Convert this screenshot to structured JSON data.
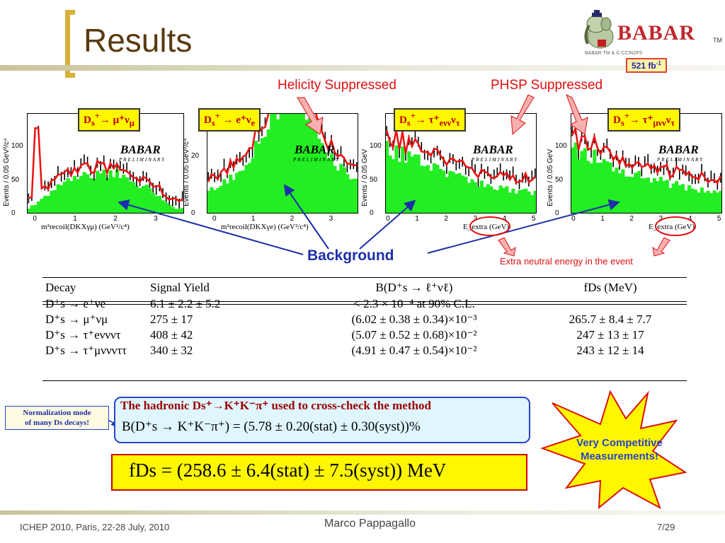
{
  "slide": {
    "title": "Results",
    "logo": "BABAR",
    "logo_tm": "TM",
    "logo_sub": "BABAR TM & © CCIN2P3",
    "luminosity_value": "521 fb",
    "luminosity_exp": "-1"
  },
  "annotations": {
    "helicity": "Helicity Suppressed",
    "phsp": "PHSP Suppressed",
    "background": "Background",
    "extra_energy": "Extra neutral energy in the event"
  },
  "plots": [
    {
      "mode_prefix": "D",
      "mode_sub": "s",
      "mode_sup": "+",
      "mode_rest": "→ μ⁺ν",
      "mode_rest_sub": "μ",
      "ylabel": "Events / 0.05 GeV²/c⁴",
      "yticks": [
        "100",
        "50",
        "0"
      ],
      "xticks": [
        "0",
        "1",
        "2",
        "3"
      ],
      "xlabel": "m²recoil(DKXγμ)   (GeV²/c⁴)",
      "watermark": "BABAR",
      "prelim": "PRELIMINARY"
    },
    {
      "mode_prefix": "D",
      "mode_sub": "s",
      "mode_sup": "+",
      "mode_rest": " → e⁺ν",
      "mode_rest_sub": "e",
      "ylabel": "Events / 0.05 GeV²/c⁴",
      "yticks": [
        "20",
        "0"
      ],
      "xticks": [
        "0",
        "1",
        "2",
        "3"
      ],
      "xlabel": "m²recoil(DKXγe)   (GeV²/c⁴)",
      "watermark": "BABAR",
      "prelim": "PRELIMINARY"
    },
    {
      "mode_prefix": "D",
      "mode_sub": "s",
      "mode_sup": "+",
      "mode_rest": "→ τ⁺",
      "mode_rest_sub": "eνν",
      "mode_tail": "ν",
      "mode_tail_sub": "τ",
      "ylabel": "Events / 0.05 GeV",
      "yticks": [
        "100",
        "50",
        "0"
      ],
      "xticks": [
        "0",
        "1",
        "2",
        "3",
        "4",
        "5"
      ],
      "xlabel": "E_extra   (GeV)",
      "watermark": "BABAR",
      "prelim": "PRELIMINARY"
    },
    {
      "mode_prefix": "D",
      "mode_sub": "s",
      "mode_sup": "+",
      "mode_rest": "→ τ⁺",
      "mode_rest_sub": "μνν",
      "mode_tail": "ν",
      "mode_tail_sub": "τ",
      "ylabel": "Events / 0.05 GeV",
      "yticks": [
        "100",
        "50",
        "0"
      ],
      "xticks": [
        "0",
        "1",
        "2",
        "3",
        "4",
        "5"
      ],
      "xlabel": "E_extra   (GeV)",
      "watermark": "BABAR",
      "prelim": "PRELIMINARY"
    }
  ],
  "table": {
    "headers": [
      "Decay",
      "Signal Yield",
      "B(D⁺s → ℓ⁺νℓ)",
      "fDs  (MeV)"
    ],
    "rows": [
      [
        "D⁺s → e⁺νe",
        "6.1 ± 2.2 ± 5.2",
        "< 2.3 × 10⁻⁴  at 90% C.L.",
        ""
      ],
      [
        "D⁺s → μ⁺νμ",
        "275 ± 17",
        "(6.02 ± 0.38 ± 0.34)×10⁻³",
        "265.7 ± 8.4 ± 7.7"
      ],
      [
        "D⁺s → τ⁺eννντ",
        "408 ± 42",
        "(5.07 ± 0.52 ± 0.68)×10⁻²",
        "247 ± 13 ± 17"
      ],
      [
        "D⁺s → τ⁺μνννττ",
        "340 ± 32",
        "(4.91 ± 0.47 ± 0.54)×10⁻²",
        "243 ± 12 ± 14"
      ]
    ]
  },
  "normalization": {
    "line1": "Normalization mode",
    "line2": "of many Ds decays!"
  },
  "hadronic": {
    "title": "The hadronic Ds⁺→K⁺K⁻π⁺ used to cross-check the method",
    "formula": "B(D⁺s → K⁺K⁻π⁺) = (5.78 ± 0.20(stat) ± 0.30(syst))%"
  },
  "result": {
    "formula": "fDs = (258.6 ± 6.4(stat) ± 7.5(syst)) MeV"
  },
  "star": {
    "line1": "Very Competitive",
    "line2": "Measurements!"
  },
  "footer": {
    "left": "ICHEP 2010, Paris, 22-28 July, 2010",
    "center": "Marco Pappagallo",
    "right": "7/29"
  },
  "colors": {
    "title": "#5a3a10",
    "accent_gold": "#d8b13a",
    "red": "#d11111",
    "blue": "#1d2fa8",
    "signal_green": "#22ee22",
    "fit_red": "#ee1111",
    "box_yellow": "#fff700"
  }
}
